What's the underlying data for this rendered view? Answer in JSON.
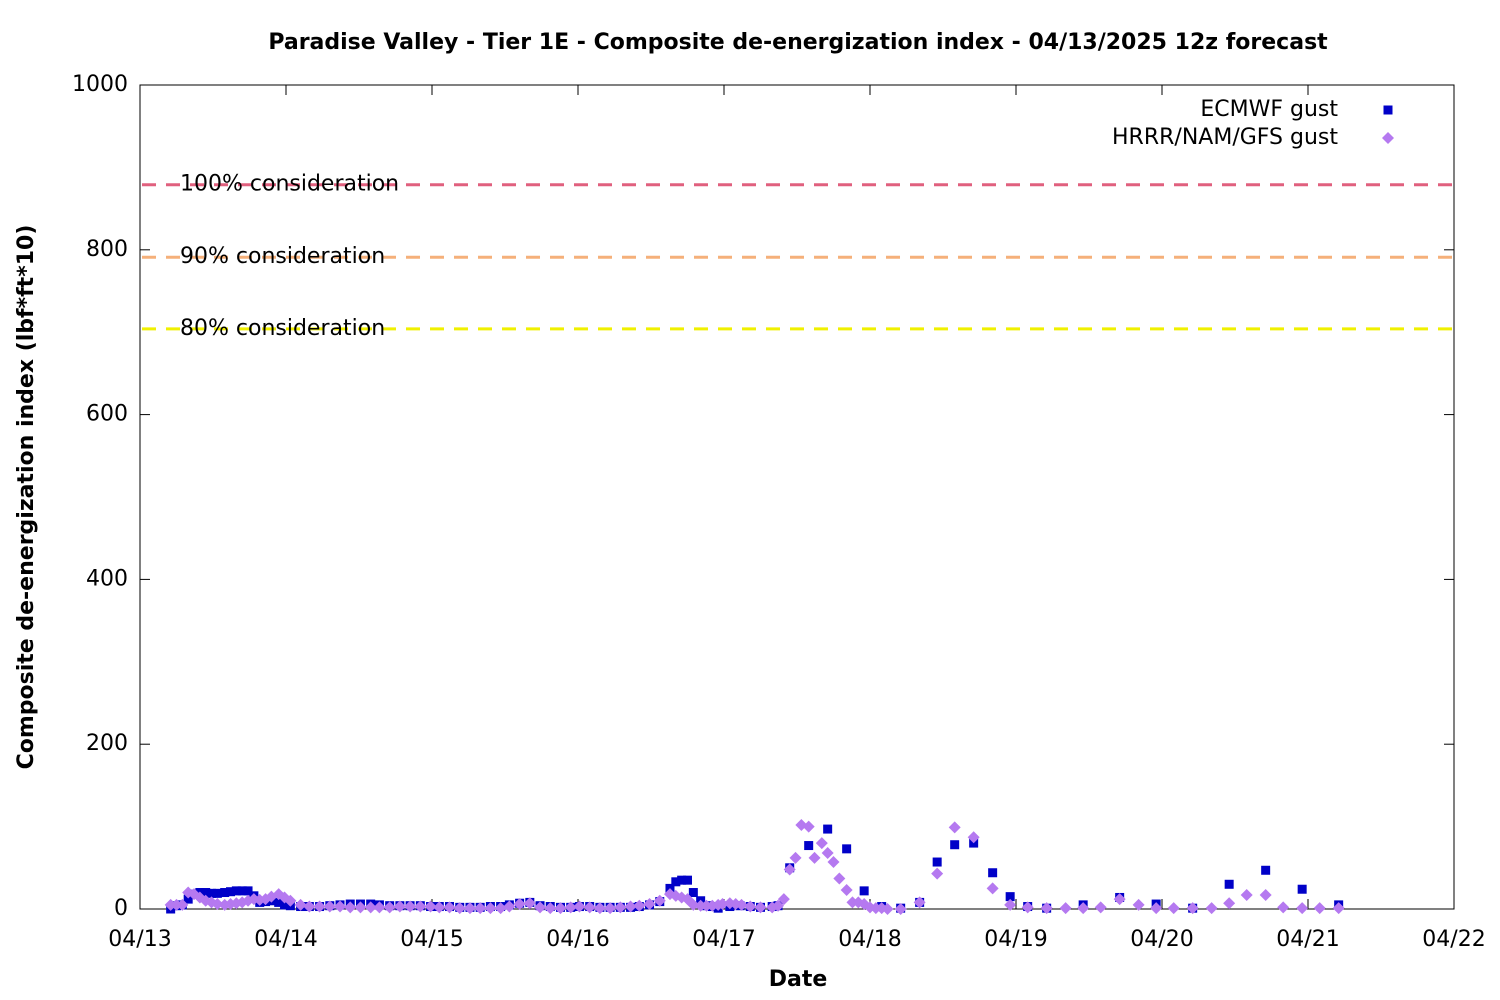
{
  "chart_data": {
    "type": "scatter",
    "title": "Paradise Valley - Tier 1E - Composite de-energization index - 04/13/2025 12z forecast",
    "xlabel": "Date",
    "ylabel": "Composite de-energization index (lbf*ft*10)",
    "xlim": [
      0,
      9
    ],
    "xticks": [
      {
        "value": 0,
        "label": "04/13"
      },
      {
        "value": 1,
        "label": "04/14"
      },
      {
        "value": 2,
        "label": "04/15"
      },
      {
        "value": 3,
        "label": "04/16"
      },
      {
        "value": 4,
        "label": "04/17"
      },
      {
        "value": 5,
        "label": "04/18"
      },
      {
        "value": 6,
        "label": "04/19"
      },
      {
        "value": 7,
        "label": "04/20"
      },
      {
        "value": 8,
        "label": "04/21"
      },
      {
        "value": 9,
        "label": "04/22"
      }
    ],
    "ylim": [
      0,
      1000
    ],
    "yticks": [
      0,
      200,
      400,
      600,
      800,
      1000
    ],
    "legend": "top-right",
    "reference_lines": [
      {
        "label": "100% consideration",
        "value": 879,
        "color": "#e0607e"
      },
      {
        "label": "90% consideration",
        "value": 791,
        "color": "#f5b07a"
      },
      {
        "label": "80% consideration",
        "value": 704,
        "color": "#f0f000"
      }
    ],
    "series": [
      {
        "name": "ECMWF gust",
        "color": "#0000c8",
        "marker": "square",
        "x": [
          0.21,
          0.25,
          0.29,
          0.33,
          0.37,
          0.41,
          0.45,
          0.49,
          0.53,
          0.58,
          0.62,
          0.66,
          0.7,
          0.74,
          0.78,
          0.82,
          0.86,
          0.9,
          0.95,
          0.99,
          1.03,
          1.1,
          1.16,
          1.23,
          1.3,
          1.37,
          1.44,
          1.51,
          1.58,
          1.64,
          1.71,
          1.78,
          1.85,
          1.92,
          1.99,
          2.05,
          2.12,
          2.19,
          2.26,
          2.33,
          2.4,
          2.47,
          2.53,
          2.6,
          2.67,
          2.74,
          2.81,
          2.88,
          2.95,
          3.01,
          3.08,
          3.15,
          3.22,
          3.29,
          3.36,
          3.42,
          3.49,
          3.56,
          3.63,
          3.67,
          3.71,
          3.75,
          3.79,
          3.84,
          3.88,
          3.92,
          3.96,
          4.04,
          4.11,
          4.18,
          4.25,
          4.33,
          4.37,
          4.45,
          4.58,
          4.71,
          4.84,
          4.96,
          5.08,
          5.21,
          5.34,
          5.46,
          5.58,
          5.71,
          5.84,
          5.96,
          6.08,
          6.21,
          6.46,
          6.71,
          6.96,
          7.21,
          7.46,
          7.71,
          7.96,
          8.21
        ],
        "values": [
          0,
          4,
          5,
          12,
          18,
          20,
          20,
          19,
          19,
          20,
          21,
          22,
          22,
          22,
          16,
          8,
          9,
          10,
          8,
          5,
          4,
          3,
          3,
          3,
          4,
          5,
          6,
          6,
          6,
          5,
          4,
          4,
          4,
          4,
          3,
          3,
          3,
          2,
          2,
          2,
          3,
          3,
          5,
          7,
          8,
          4,
          3,
          2,
          2,
          3,
          3,
          2,
          2,
          2,
          2,
          3,
          5,
          9,
          25,
          33,
          35,
          35,
          20,
          10,
          4,
          3,
          1,
          3,
          4,
          3,
          2,
          3,
          4,
          50,
          77,
          97,
          73,
          22,
          3,
          1,
          8,
          57,
          78,
          80,
          44,
          15,
          3,
          1,
          5,
          14,
          6,
          1,
          30,
          47,
          24,
          5
        ]
      },
      {
        "name": "HRRR/NAM/GFS gust",
        "color": "#b579f0",
        "marker": "diamond",
        "x": [
          0.21,
          0.25,
          0.29,
          0.33,
          0.37,
          0.41,
          0.45,
          0.49,
          0.53,
          0.58,
          0.62,
          0.66,
          0.7,
          0.74,
          0.78,
          0.82,
          0.86,
          0.9,
          0.95,
          0.99,
          1.03,
          1.1,
          1.16,
          1.23,
          1.3,
          1.37,
          1.44,
          1.51,
          1.58,
          1.64,
          1.71,
          1.78,
          1.85,
          1.92,
          1.99,
          2.05,
          2.12,
          2.19,
          2.26,
          2.33,
          2.4,
          2.47,
          2.53,
          2.6,
          2.67,
          2.74,
          2.81,
          2.88,
          2.95,
          3.01,
          3.08,
          3.15,
          3.22,
          3.29,
          3.36,
          3.42,
          3.49,
          3.56,
          3.63,
          3.67,
          3.71,
          3.75,
          3.79,
          3.84,
          3.88,
          3.92,
          3.96,
          3.99,
          4.04,
          4.08,
          4.12,
          4.18,
          4.25,
          4.33,
          4.37,
          4.41,
          4.45,
          4.49,
          4.53,
          4.58,
          4.62,
          4.67,
          4.71,
          4.75,
          4.79,
          4.84,
          4.88,
          4.92,
          4.96,
          5.0,
          5.04,
          5.08,
          5.12,
          5.21,
          5.34,
          5.46,
          5.58,
          5.71,
          5.84,
          5.96,
          6.08,
          6.21,
          6.34,
          6.46,
          6.58,
          6.71,
          6.84,
          6.96,
          7.08,
          7.21,
          7.34,
          7.46,
          7.58,
          7.71,
          7.83,
          7.96,
          8.08,
          8.21
        ],
        "values": [
          5,
          5,
          5,
          20,
          18,
          14,
          10,
          8,
          6,
          5,
          6,
          7,
          8,
          10,
          12,
          11,
          12,
          15,
          18,
          14,
          10,
          5,
          3,
          3,
          3,
          3,
          2,
          2,
          2,
          2,
          2,
          3,
          3,
          3,
          3,
          2,
          2,
          1,
          1,
          1,
          1,
          1,
          3,
          6,
          7,
          2,
          1,
          1,
          2,
          3,
          2,
          1,
          1,
          2,
          3,
          4,
          6,
          10,
          18,
          16,
          14,
          12,
          5,
          4,
          4,
          4,
          5,
          6,
          7,
          6,
          5,
          3,
          2,
          2,
          4,
          12,
          48,
          62,
          102,
          100,
          62,
          80,
          68,
          57,
          37,
          23,
          8,
          8,
          6,
          2,
          1,
          1,
          0,
          0,
          8,
          43,
          99,
          87,
          25,
          5,
          2,
          1,
          1,
          1,
          2,
          12,
          5,
          1,
          1,
          1,
          1,
          7,
          17,
          17,
          2,
          1,
          1,
          1
        ]
      }
    ]
  }
}
